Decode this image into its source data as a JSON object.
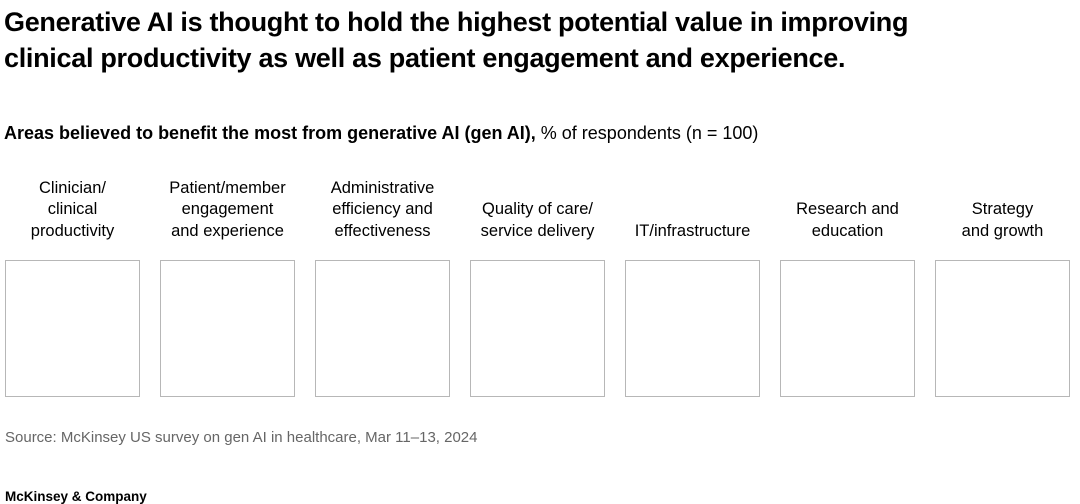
{
  "title": {
    "line1": "Generative AI is thought to hold the highest potential value in improving",
    "line2": "clinical productivity as well as patient engagement and experience."
  },
  "subtitle": {
    "bold": "Areas believed to benefit the most from generative AI (gen AI),",
    "regular": " % of respondents (n = 100)"
  },
  "columns": [
    {
      "lines": [
        "Clinician/",
        "clinical",
        "productivity"
      ]
    },
    {
      "lines": [
        "Patient/member",
        "engagement",
        "and experience"
      ]
    },
    {
      "lines": [
        "Administrative",
        "efficiency and",
        "effectiveness"
      ]
    },
    {
      "lines": [
        "Quality of care/",
        "service delivery"
      ]
    },
    {
      "lines": [
        "IT/infrastructure"
      ]
    },
    {
      "lines": [
        "Research and",
        "education"
      ]
    },
    {
      "lines": [
        "Strategy",
        "and growth"
      ]
    }
  ],
  "source": "Source: McKinsey US survey on gen AI in healthcare, Mar 11–13, 2024",
  "footer": "McKinsey & Company",
  "colors": {
    "box_border": "#b7b7b7",
    "source_text": "#666666",
    "text": "#000000",
    "background": "#ffffff"
  },
  "chart_data": {
    "type": "bar",
    "title": "Generative AI is thought to hold the highest potential value in improving clinical productivity as well as patient engagement and experience.",
    "subtitle": "Areas believed to benefit the most from generative AI (gen AI), % of respondents (n = 100)",
    "categories": [
      "Clinician/clinical productivity",
      "Patient/member engagement and experience",
      "Administrative efficiency and effectiveness",
      "Quality of care/service delivery",
      "IT/infrastructure",
      "Research and education",
      "Strategy and growth"
    ],
    "values": [],
    "ylabel": "% of respondents",
    "sample_size": "n = 100",
    "legend": [],
    "source": "McKinsey US survey on gen AI in healthcare, Mar 11–13, 2024"
  }
}
